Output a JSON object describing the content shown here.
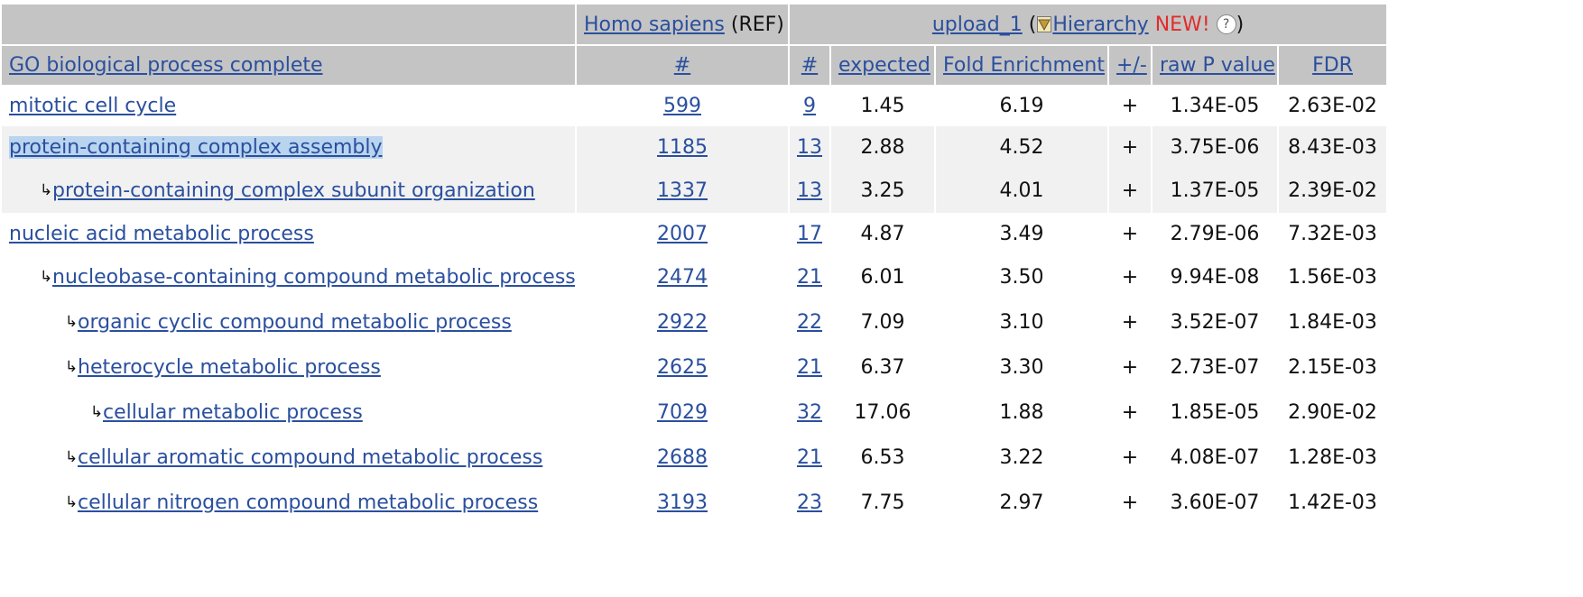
{
  "header": {
    "reference_organism": "Homo sapiens",
    "reference_suffix": "(REF)",
    "upload_label": "upload_1",
    "open_paren": "(",
    "hierarchy_label": "Hierarchy",
    "new_badge": "NEW!",
    "close_paren": ")",
    "help_icon_glyph": "?",
    "columns": {
      "term": "GO biological process complete",
      "ref_count": "#",
      "upload_count": "#",
      "expected": "expected",
      "fold_enrichment": "Fold Enrichment",
      "direction": "+/-",
      "raw_p": "raw P value",
      "fdr": "FDR"
    }
  },
  "rows": [
    {
      "term": "mitotic cell cycle",
      "ref": "599",
      "count": "9",
      "expected": "1.45",
      "fold": "6.19",
      "dir": "+",
      "raw_p": "1.34E-05",
      "fdr": "2.63E-02"
    },
    {
      "term": "protein-containing complex assembly",
      "ref": "1185",
      "count": "13",
      "expected": "2.88",
      "fold": "4.52",
      "dir": "+",
      "raw_p": "3.75E-06",
      "fdr": "8.43E-03"
    },
    {
      "term": "protein-containing complex subunit organization",
      "ref": "1337",
      "count": "13",
      "expected": "3.25",
      "fold": "4.01",
      "dir": "+",
      "raw_p": "1.37E-05",
      "fdr": "2.39E-02"
    },
    {
      "term": "nucleic acid metabolic process",
      "ref": "2007",
      "count": "17",
      "expected": "4.87",
      "fold": "3.49",
      "dir": "+",
      "raw_p": "2.79E-06",
      "fdr": "7.32E-03"
    },
    {
      "term": "nucleobase-containing compound metabolic process",
      "ref": "2474",
      "count": "21",
      "expected": "6.01",
      "fold": "3.50",
      "dir": "+",
      "raw_p": "9.94E-08",
      "fdr": "1.56E-03"
    },
    {
      "term": "organic cyclic compound metabolic process",
      "ref": "2922",
      "count": "22",
      "expected": "7.09",
      "fold": "3.10",
      "dir": "+",
      "raw_p": "3.52E-07",
      "fdr": "1.84E-03"
    },
    {
      "term": "heterocycle metabolic process",
      "ref": "2625",
      "count": "21",
      "expected": "6.37",
      "fold": "3.30",
      "dir": "+",
      "raw_p": "2.73E-07",
      "fdr": "2.15E-03"
    },
    {
      "term": "cellular metabolic process",
      "ref": "7029",
      "count": "32",
      "expected": "17.06",
      "fold": "1.88",
      "dir": "+",
      "raw_p": "1.85E-05",
      "fdr": "2.90E-02"
    },
    {
      "term": "cellular aromatic compound metabolic process",
      "ref": "2688",
      "count": "21",
      "expected": "6.53",
      "fold": "3.22",
      "dir": "+",
      "raw_p": "4.08E-07",
      "fdr": "1.28E-03"
    },
    {
      "term": "cellular nitrogen compound metabolic process",
      "ref": "3193",
      "count": "23",
      "expected": "7.75",
      "fold": "2.97",
      "dir": "+",
      "raw_p": "3.60E-07",
      "fdr": "1.42E-03"
    }
  ],
  "hierarchy_arrow_glyph": "↳",
  "colors": {
    "header_background": "#c4c4c4",
    "link": "#2a4f9e",
    "new_badge": "#e22b2b",
    "selection_highlight": "#b8d4ef",
    "shaded_row": "#f1f1f1"
  }
}
